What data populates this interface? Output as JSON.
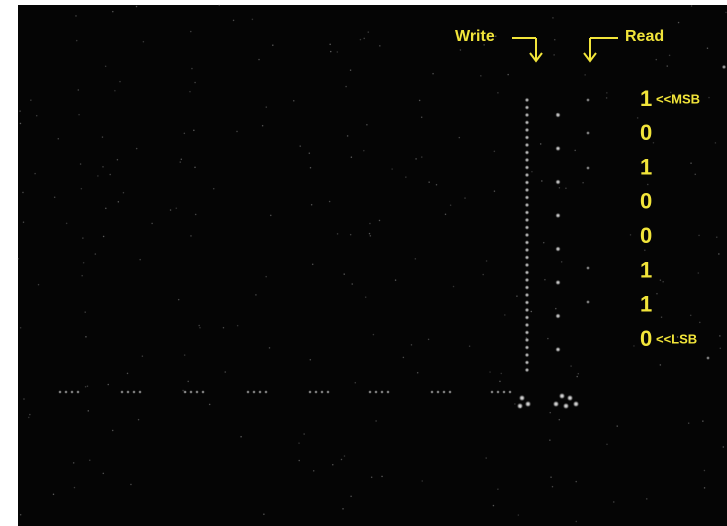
{
  "annotations": {
    "write": "Write",
    "read": "Read",
    "msb": "<<MSB",
    "lsb": "<<LSB"
  },
  "bits": [
    1,
    0,
    1,
    0,
    0,
    1,
    1,
    0
  ]
}
